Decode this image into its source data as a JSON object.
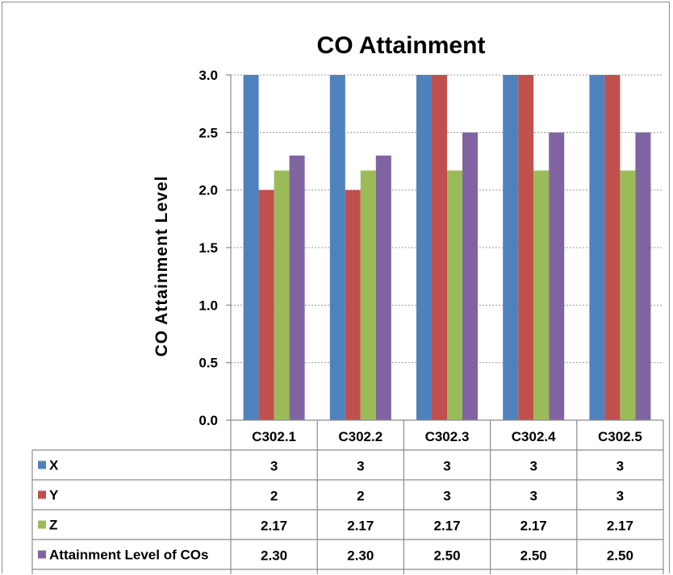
{
  "chart_data": {
    "type": "bar",
    "title": "CO Attainment",
    "xlabel": "",
    "ylabel": "CO Attainment Level",
    "ylim": [
      0,
      3
    ],
    "yticks": [
      "0.0",
      "0.5",
      "1.0",
      "1.5",
      "2.0",
      "2.5",
      "3.0"
    ],
    "grid": true,
    "legend": "data-table",
    "categories": [
      "C302.1",
      "C302.2",
      "C302.3",
      "C302.4",
      "C302.5"
    ],
    "series": [
      {
        "name": "X",
        "color": "#4f81bd",
        "values": [
          3,
          3,
          3,
          3,
          3
        ],
        "labels": [
          "3",
          "3",
          "3",
          "3",
          "3"
        ]
      },
      {
        "name": "Y",
        "color": "#c0504d",
        "values": [
          2,
          2,
          3,
          3,
          3
        ],
        "labels": [
          "2",
          "2",
          "3",
          "3",
          "3"
        ]
      },
      {
        "name": "Z",
        "color": "#9bbb59",
        "values": [
          2.17,
          2.17,
          2.17,
          2.17,
          2.17
        ],
        "labels": [
          "2.17",
          "2.17",
          "2.17",
          "2.17",
          "2.17"
        ]
      },
      {
        "name": "Attainment Level of COs",
        "color": "#8064a2",
        "values": [
          2.3,
          2.3,
          2.5,
          2.5,
          2.5
        ],
        "labels": [
          "2.30",
          "2.30",
          "2.50",
          "2.50",
          "2.50"
        ]
      }
    ]
  }
}
